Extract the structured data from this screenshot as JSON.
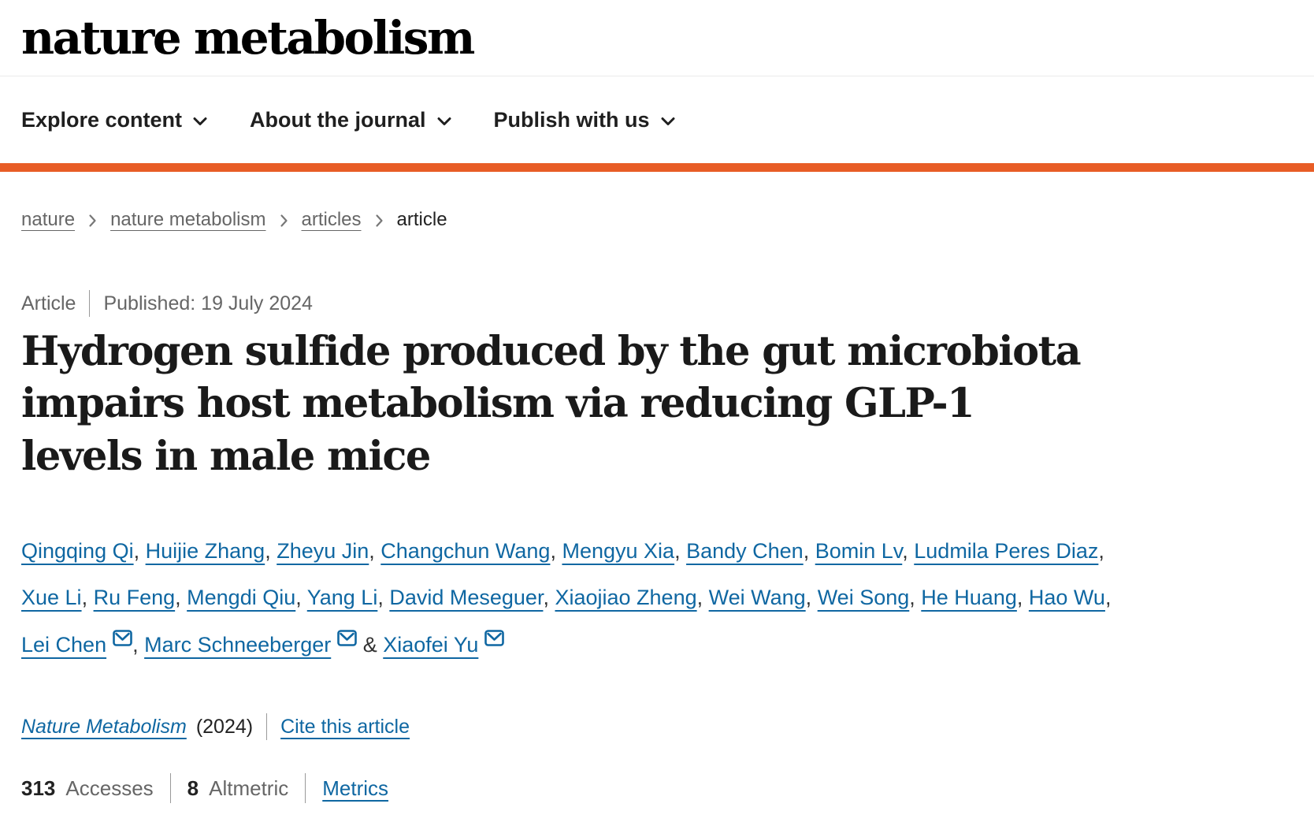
{
  "header": {
    "logo": "nature metabolism"
  },
  "nav": {
    "items": [
      {
        "label": "Explore content"
      },
      {
        "label": "About the journal"
      },
      {
        "label": "Publish with us"
      }
    ]
  },
  "breadcrumb": {
    "items": [
      "nature",
      "nature metabolism",
      "articles"
    ],
    "current": "article"
  },
  "article_meta": {
    "type": "Article",
    "published": "Published: 19 July 2024"
  },
  "title": "Hydrogen sulfide produced by the gut microbiota impairs host metabolism via reducing GLP-1 levels in male mice",
  "authors": {
    "list": [
      {
        "name": "Qingqing Qi"
      },
      {
        "name": "Huijie Zhang"
      },
      {
        "name": "Zheyu Jin"
      },
      {
        "name": "Changchun Wang"
      },
      {
        "name": "Mengyu Xia"
      },
      {
        "name": "Bandy Chen"
      },
      {
        "name": "Bomin Lv"
      },
      {
        "name": "Ludmila Peres Diaz"
      },
      {
        "name": "Xue Li"
      },
      {
        "name": "Ru Feng"
      },
      {
        "name": "Mengdi Qiu"
      },
      {
        "name": "Yang Li"
      },
      {
        "name": "David Meseguer"
      },
      {
        "name": "Xiaojiao Zheng"
      },
      {
        "name": "Wei Wang"
      },
      {
        "name": "Wei Song"
      },
      {
        "name": "He Huang"
      },
      {
        "name": "Hao Wu"
      },
      {
        "name": "Lei Chen",
        "email": true
      },
      {
        "name": "Marc Schneeberger",
        "email": true
      },
      {
        "name": "Xiaofei Yu",
        "email": true
      }
    ]
  },
  "citation": {
    "journal": "Nature Metabolism",
    "year": "(2024)",
    "cite_link": "Cite this article"
  },
  "metrics": {
    "accesses_count": "313",
    "accesses_label": "Accesses",
    "altmetric_count": "8",
    "altmetric_label": "Altmetric",
    "metrics_link": "Metrics"
  },
  "colors": {
    "accent_orange": "#e85d26",
    "link_blue": "#0f67a2",
    "text_dark": "#1f1f1f",
    "text_gray": "#666666"
  }
}
